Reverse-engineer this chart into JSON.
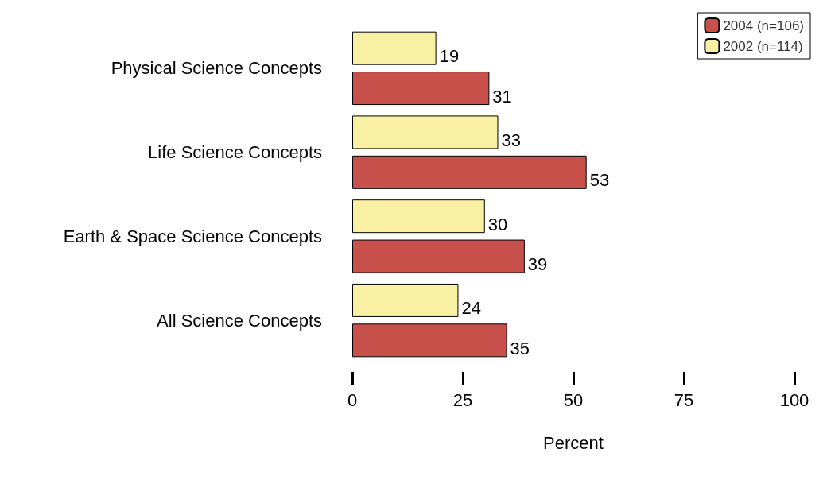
{
  "chart_data": {
    "type": "bar",
    "orientation": "horizontal",
    "categories": [
      "Physical Science Concepts",
      "Life Science Concepts",
      "Earth & Space Science Concepts",
      "All Science Concepts"
    ],
    "series": [
      {
        "name": "2004 (n=106)",
        "color": "#c8504b",
        "values": [
          31,
          53,
          39,
          35
        ]
      },
      {
        "name": "2002 (n=114)",
        "color": "#f8f0a2",
        "values": [
          19,
          33,
          30,
          24
        ]
      }
    ],
    "xlabel": "Percent",
    "xlim": [
      0,
      100
    ],
    "xticks": [
      0,
      25,
      50,
      75,
      100
    ],
    "grid": false,
    "legend": "top right",
    "data_labels": true
  }
}
